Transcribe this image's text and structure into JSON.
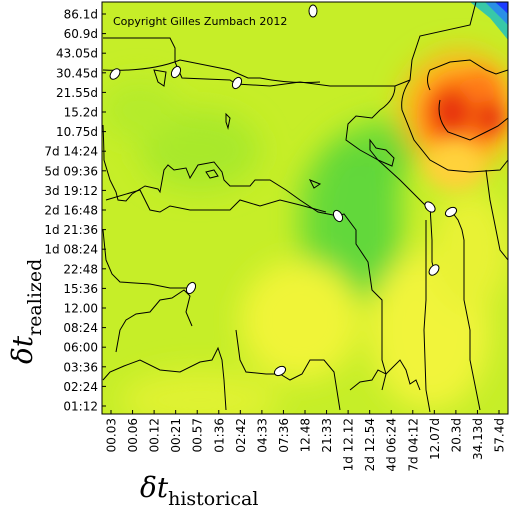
{
  "chart_data": {
    "type": "heatmap",
    "copyright": "Copyright Gilles Zumbach 2012",
    "xlabel": {
      "symbol": "δt",
      "subscript": "historical"
    },
    "ylabel": {
      "symbol": "δt",
      "subscript": "realized"
    },
    "x_ticks": [
      "00.03",
      "00.06",
      "00.12",
      "00:21",
      "00.57",
      "01:36",
      "02:42",
      "04:33",
      "07:36",
      "12.48",
      "21:33",
      "1d 12.12",
      "2d 12.54",
      "4d 06:24",
      "7d 04:12",
      "12.07d",
      "20.3d",
      "34.13d",
      "57.4d"
    ],
    "y_ticks": [
      "86.1d",
      "60.9d",
      "43.05d",
      "30.45d",
      "21.55d",
      "15.2d",
      "10.75d",
      "7d 14:24",
      "5d 09:36",
      "3d 19:12",
      "2d 16:48",
      "1d 21:36",
      "1d 08:24",
      "22:48",
      "15:36",
      "12.00",
      "08:24",
      "06:00",
      "03:36",
      "02:24",
      "01:12"
    ],
    "grid": false,
    "colormap": [
      "#1e3cff",
      "#29b5e8",
      "#3ed65a",
      "#7fe22a",
      "#c8f02a",
      "#f5f53a",
      "#ff9c14",
      "#f3520c",
      "#d11a08"
    ],
    "colorbar": false,
    "contours": true
  }
}
